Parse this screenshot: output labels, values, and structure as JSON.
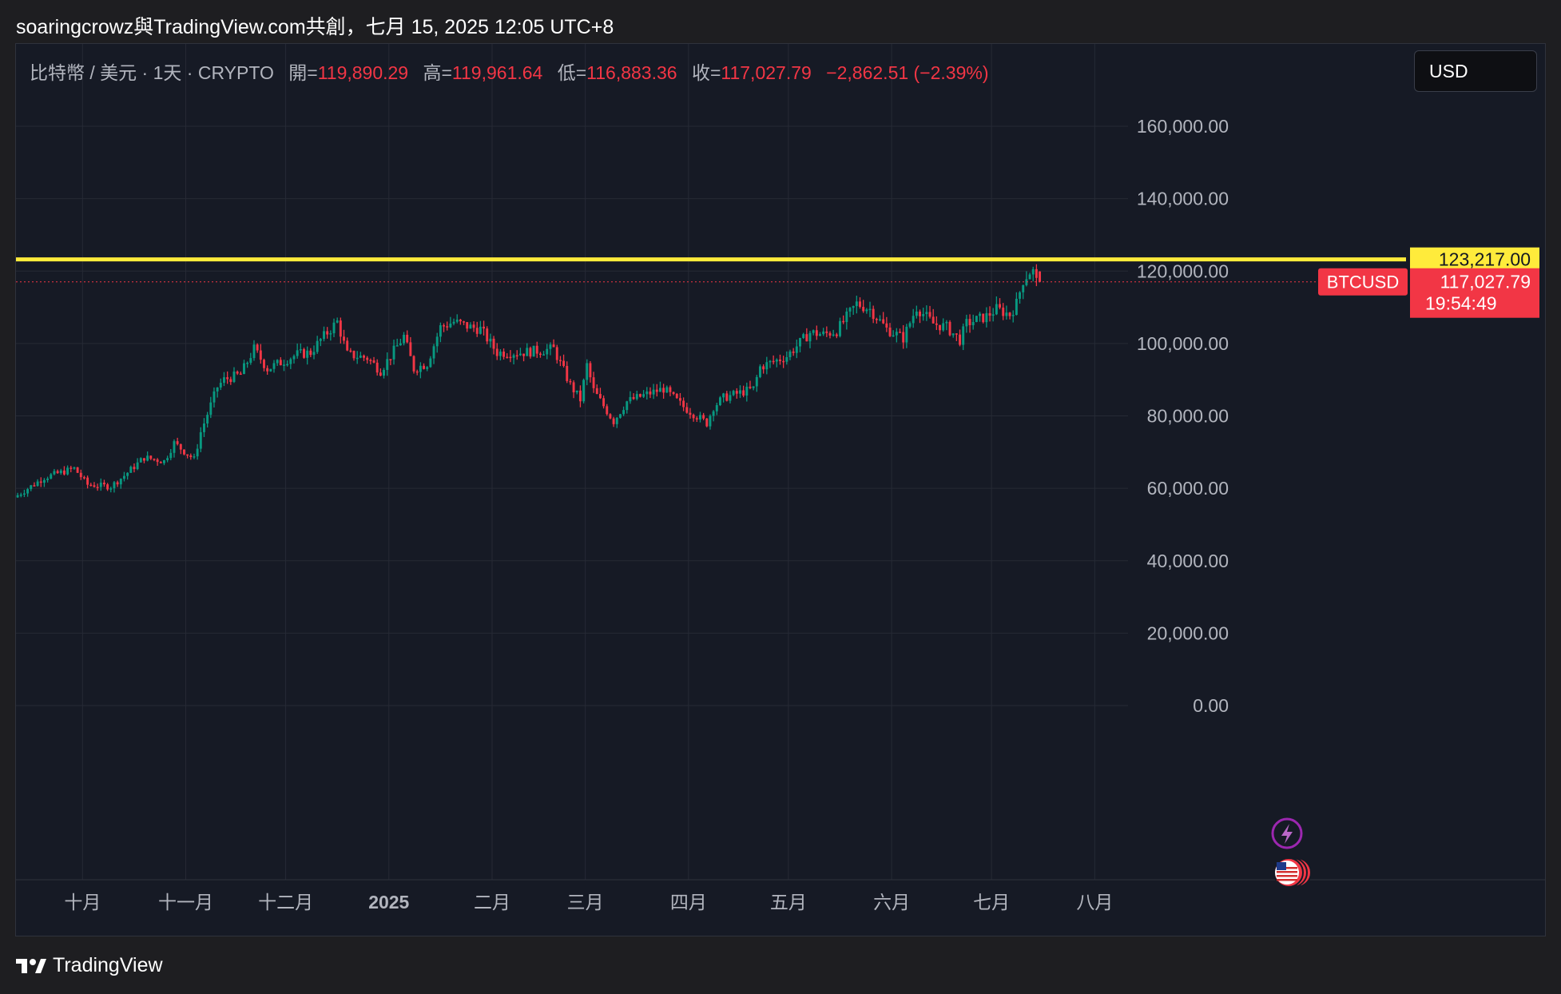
{
  "caption": "soaringcrowz與TradingView.com共創，七月 15, 2025 12:05 UTC+8",
  "legend": {
    "symbol": "比特幣 / 美元 · 1天 · CRYPTO",
    "open_label": "開=",
    "open": "119,890.29",
    "high_label": "高=",
    "high": "119,961.64",
    "low_label": "低=",
    "low": "116,883.36",
    "close_label": "收=",
    "close": "117,027.79",
    "change": "−2,862.51 (−2.39%)"
  },
  "currency_button": "USD",
  "brand": "TradingView",
  "colors": {
    "up": "#089981",
    "down": "#f23645",
    "hline": "#ffeb3b",
    "bg": "#161a25",
    "grid": "#262a35"
  },
  "chart_data": {
    "type": "candlestick",
    "symbol": "BTCUSD",
    "interval": "1D",
    "y_ticks": [
      "160,000.00",
      "140,000.00",
      "120,000.00",
      "100,000.00",
      "80,000.00",
      "60,000.00",
      "40,000.00",
      "20,000.00",
      "0.00"
    ],
    "y_tick_values": [
      160000,
      140000,
      120000,
      100000,
      80000,
      60000,
      40000,
      20000,
      0
    ],
    "ylim": [
      0,
      172000
    ],
    "x_ticks": [
      "十月",
      "十一月",
      "十二月",
      "2025",
      "二月",
      "三月",
      "四月",
      "五月",
      "六月",
      "七月",
      "八月"
    ],
    "x_tick_dates": [
      "2024-10-01",
      "2024-11-01",
      "2024-12-01",
      "2025-01-01",
      "2025-02-01",
      "2025-03-01",
      "2025-04-01",
      "2025-05-01",
      "2025-06-01",
      "2025-07-01",
      "2025-08-01"
    ],
    "x_start": "2024-09-11",
    "x_end": "2025-08-11",
    "horizontal_line": {
      "value": 123217,
      "label": "123,217.00"
    },
    "last_price": {
      "value": 117027.79,
      "label": "117,027.79",
      "countdown": "19:54:49",
      "symbol_tag": "BTCUSD"
    },
    "price_path": [
      [
        "2024-09-11",
        57500
      ],
      [
        "2024-09-20",
        63000
      ],
      [
        "2024-09-29",
        65500
      ],
      [
        "2024-10-03",
        61000
      ],
      [
        "2024-10-10",
        60500
      ],
      [
        "2024-10-14",
        63500
      ],
      [
        "2024-10-20",
        68500
      ],
      [
        "2024-10-26",
        67500
      ],
      [
        "2024-10-29",
        72500
      ],
      [
        "2024-11-04",
        68000
      ],
      [
        "2024-11-06",
        75500
      ],
      [
        "2024-11-11",
        88000
      ],
      [
        "2024-11-13",
        90000
      ],
      [
        "2024-11-18",
        91500
      ],
      [
        "2024-11-22",
        98500
      ],
      [
        "2024-11-26",
        93000
      ],
      [
        "2024-12-05",
        97000
      ],
      [
        "2024-12-09",
        97500
      ],
      [
        "2024-12-12",
        101000
      ],
      [
        "2024-12-17",
        106000
      ],
      [
        "2024-12-20",
        97000
      ],
      [
        "2024-12-26",
        96000
      ],
      [
        "2024-12-30",
        92500
      ],
      [
        "2025-01-06",
        102000
      ],
      [
        "2025-01-09",
        93000
      ],
      [
        "2025-01-13",
        94500
      ],
      [
        "2025-01-17",
        104500
      ],
      [
        "2025-01-21",
        106000
      ],
      [
        "2025-01-26",
        104500
      ],
      [
        "2025-01-29",
        104000
      ],
      [
        "2025-02-03",
        97500
      ],
      [
        "2025-02-10",
        97500
      ],
      [
        "2025-02-20",
        98500
      ],
      [
        "2025-02-25",
        88500
      ],
      [
        "2025-02-28",
        84500
      ],
      [
        "2025-03-02",
        94000
      ],
      [
        "2025-03-04",
        87000
      ],
      [
        "2025-03-10",
        78500
      ],
      [
        "2025-03-14",
        84000
      ],
      [
        "2025-03-20",
        86000
      ],
      [
        "2025-03-25",
        87500
      ],
      [
        "2025-03-31",
        82500
      ],
      [
        "2025-04-07",
        78000
      ],
      [
        "2025-04-09",
        82500
      ],
      [
        "2025-04-12",
        85000
      ],
      [
        "2025-04-21",
        87500
      ],
      [
        "2025-04-23",
        93500
      ],
      [
        "2025-05-01",
        96500
      ],
      [
        "2025-05-08",
        103000
      ],
      [
        "2025-05-12",
        102500
      ],
      [
        "2025-05-16",
        103500
      ],
      [
        "2025-05-22",
        111000
      ],
      [
        "2025-05-26",
        109500
      ],
      [
        "2025-05-31",
        104000
      ],
      [
        "2025-06-05",
        101500
      ],
      [
        "2025-06-09",
        110000
      ],
      [
        "2025-06-14",
        105500
      ],
      [
        "2025-06-18",
        104500
      ],
      [
        "2025-06-22",
        101000
      ],
      [
        "2025-06-24",
        105500
      ],
      [
        "2025-06-30",
        107500
      ],
      [
        "2025-07-03",
        109500
      ],
      [
        "2025-07-07",
        108000
      ],
      [
        "2025-07-09",
        111000
      ],
      [
        "2025-07-11",
        117500
      ],
      [
        "2025-07-13",
        119800
      ],
      [
        "2025-07-14",
        119890
      ],
      [
        "2025-07-15",
        117028
      ]
    ],
    "last_candle": {
      "date": "2025-07-15",
      "open": 119890.29,
      "high": 119961.64,
      "low": 116883.36,
      "close": 117027.79
    }
  }
}
